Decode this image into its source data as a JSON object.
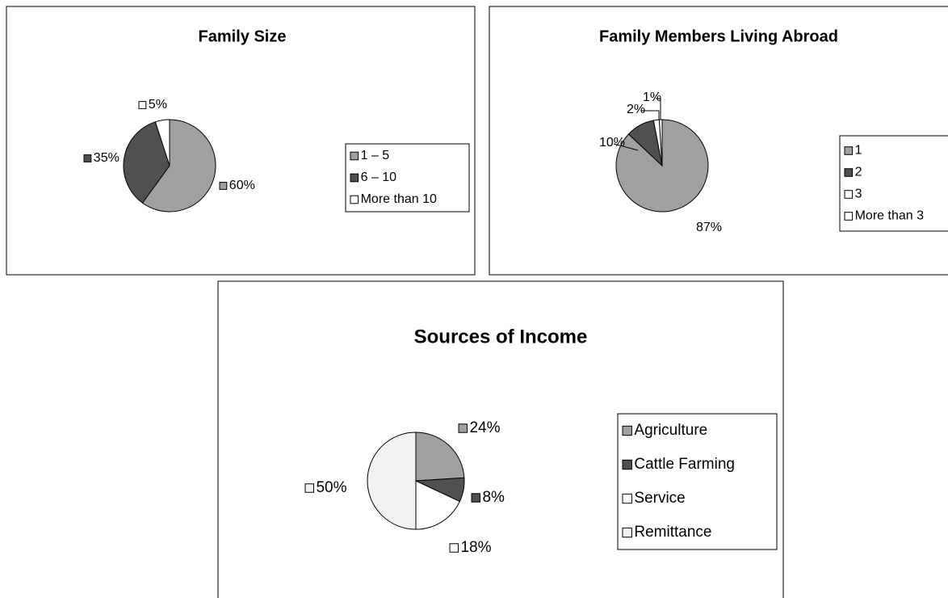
{
  "chart_data": [
    {
      "type": "pie",
      "title": "Family Size",
      "categories": [
        "1 – 5",
        "6 – 10",
        "More than 10"
      ],
      "values": [
        60,
        35,
        5
      ],
      "value_labels": [
        "60%",
        "35%",
        "5%"
      ],
      "colors": [
        "#a0a0a0",
        "#505050",
        "#ffffff"
      ]
    },
    {
      "type": "pie",
      "title": "Family Members Living Abroad",
      "categories": [
        "1",
        "2",
        "3",
        "More than 3"
      ],
      "values": [
        87,
        10,
        2,
        1
      ],
      "value_labels": [
        "87%",
        "10%",
        "2%",
        "1%"
      ],
      "colors": [
        "#a0a0a0",
        "#505050",
        "#ffffff",
        "#ffffff"
      ]
    },
    {
      "type": "pie",
      "title": "Sources of Income",
      "categories": [
        "Agriculture",
        "Cattle Farming",
        "Service",
        "Remittance"
      ],
      "values": [
        24,
        8,
        18,
        50
      ],
      "value_labels": [
        "24%",
        "8%",
        "18%",
        "50%"
      ],
      "colors": [
        "#a0a0a0",
        "#505050",
        "#ffffff",
        "#f2f2f2"
      ]
    }
  ]
}
